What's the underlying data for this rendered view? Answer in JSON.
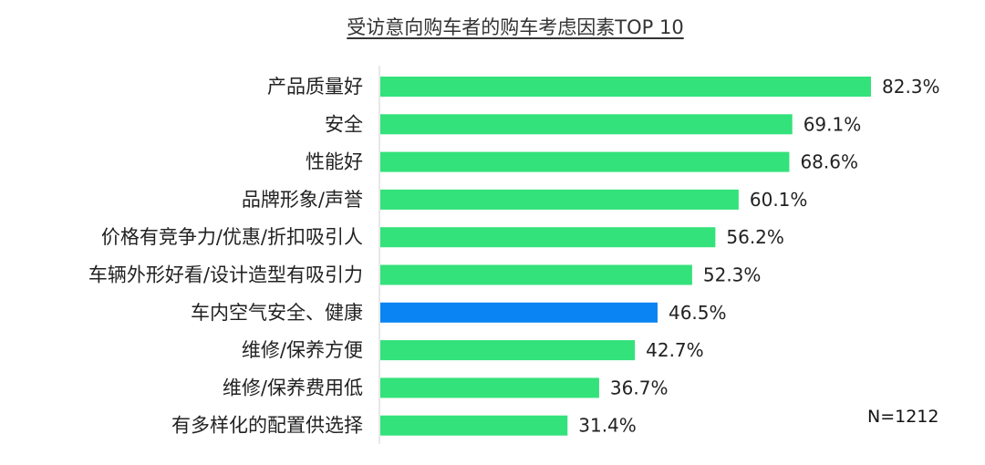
{
  "chart_data": {
    "type": "bar",
    "orientation": "horizontal",
    "title": "受访意向购车者的购车考虑因素TOP 10",
    "note": "N=1212",
    "categories": [
      "产品质量好",
      "安全",
      "性能好",
      "品牌形象/声誉",
      "价格有竞争力/优惠/折扣吸引人",
      "车辆外形好看/设计造型有吸引力",
      "车内空气安全、健康",
      "维修/保养方便",
      "维修/保养费用低",
      "有多样化的配置供选择"
    ],
    "values": [
      82.3,
      69.1,
      68.6,
      60.1,
      56.2,
      52.3,
      46.5,
      42.7,
      36.7,
      31.4
    ],
    "value_labels": [
      "82.3%",
      "69.1%",
      "68.6%",
      "60.1%",
      "56.2%",
      "52.3%",
      "46.5%",
      "42.7%",
      "36.7%",
      "31.4%"
    ],
    "highlight_index": 6,
    "colors": {
      "default": "#33E27A",
      "highlight": "#0A84F2",
      "axis": "#d0d0d0"
    },
    "xlim": [
      0,
      100
    ]
  }
}
